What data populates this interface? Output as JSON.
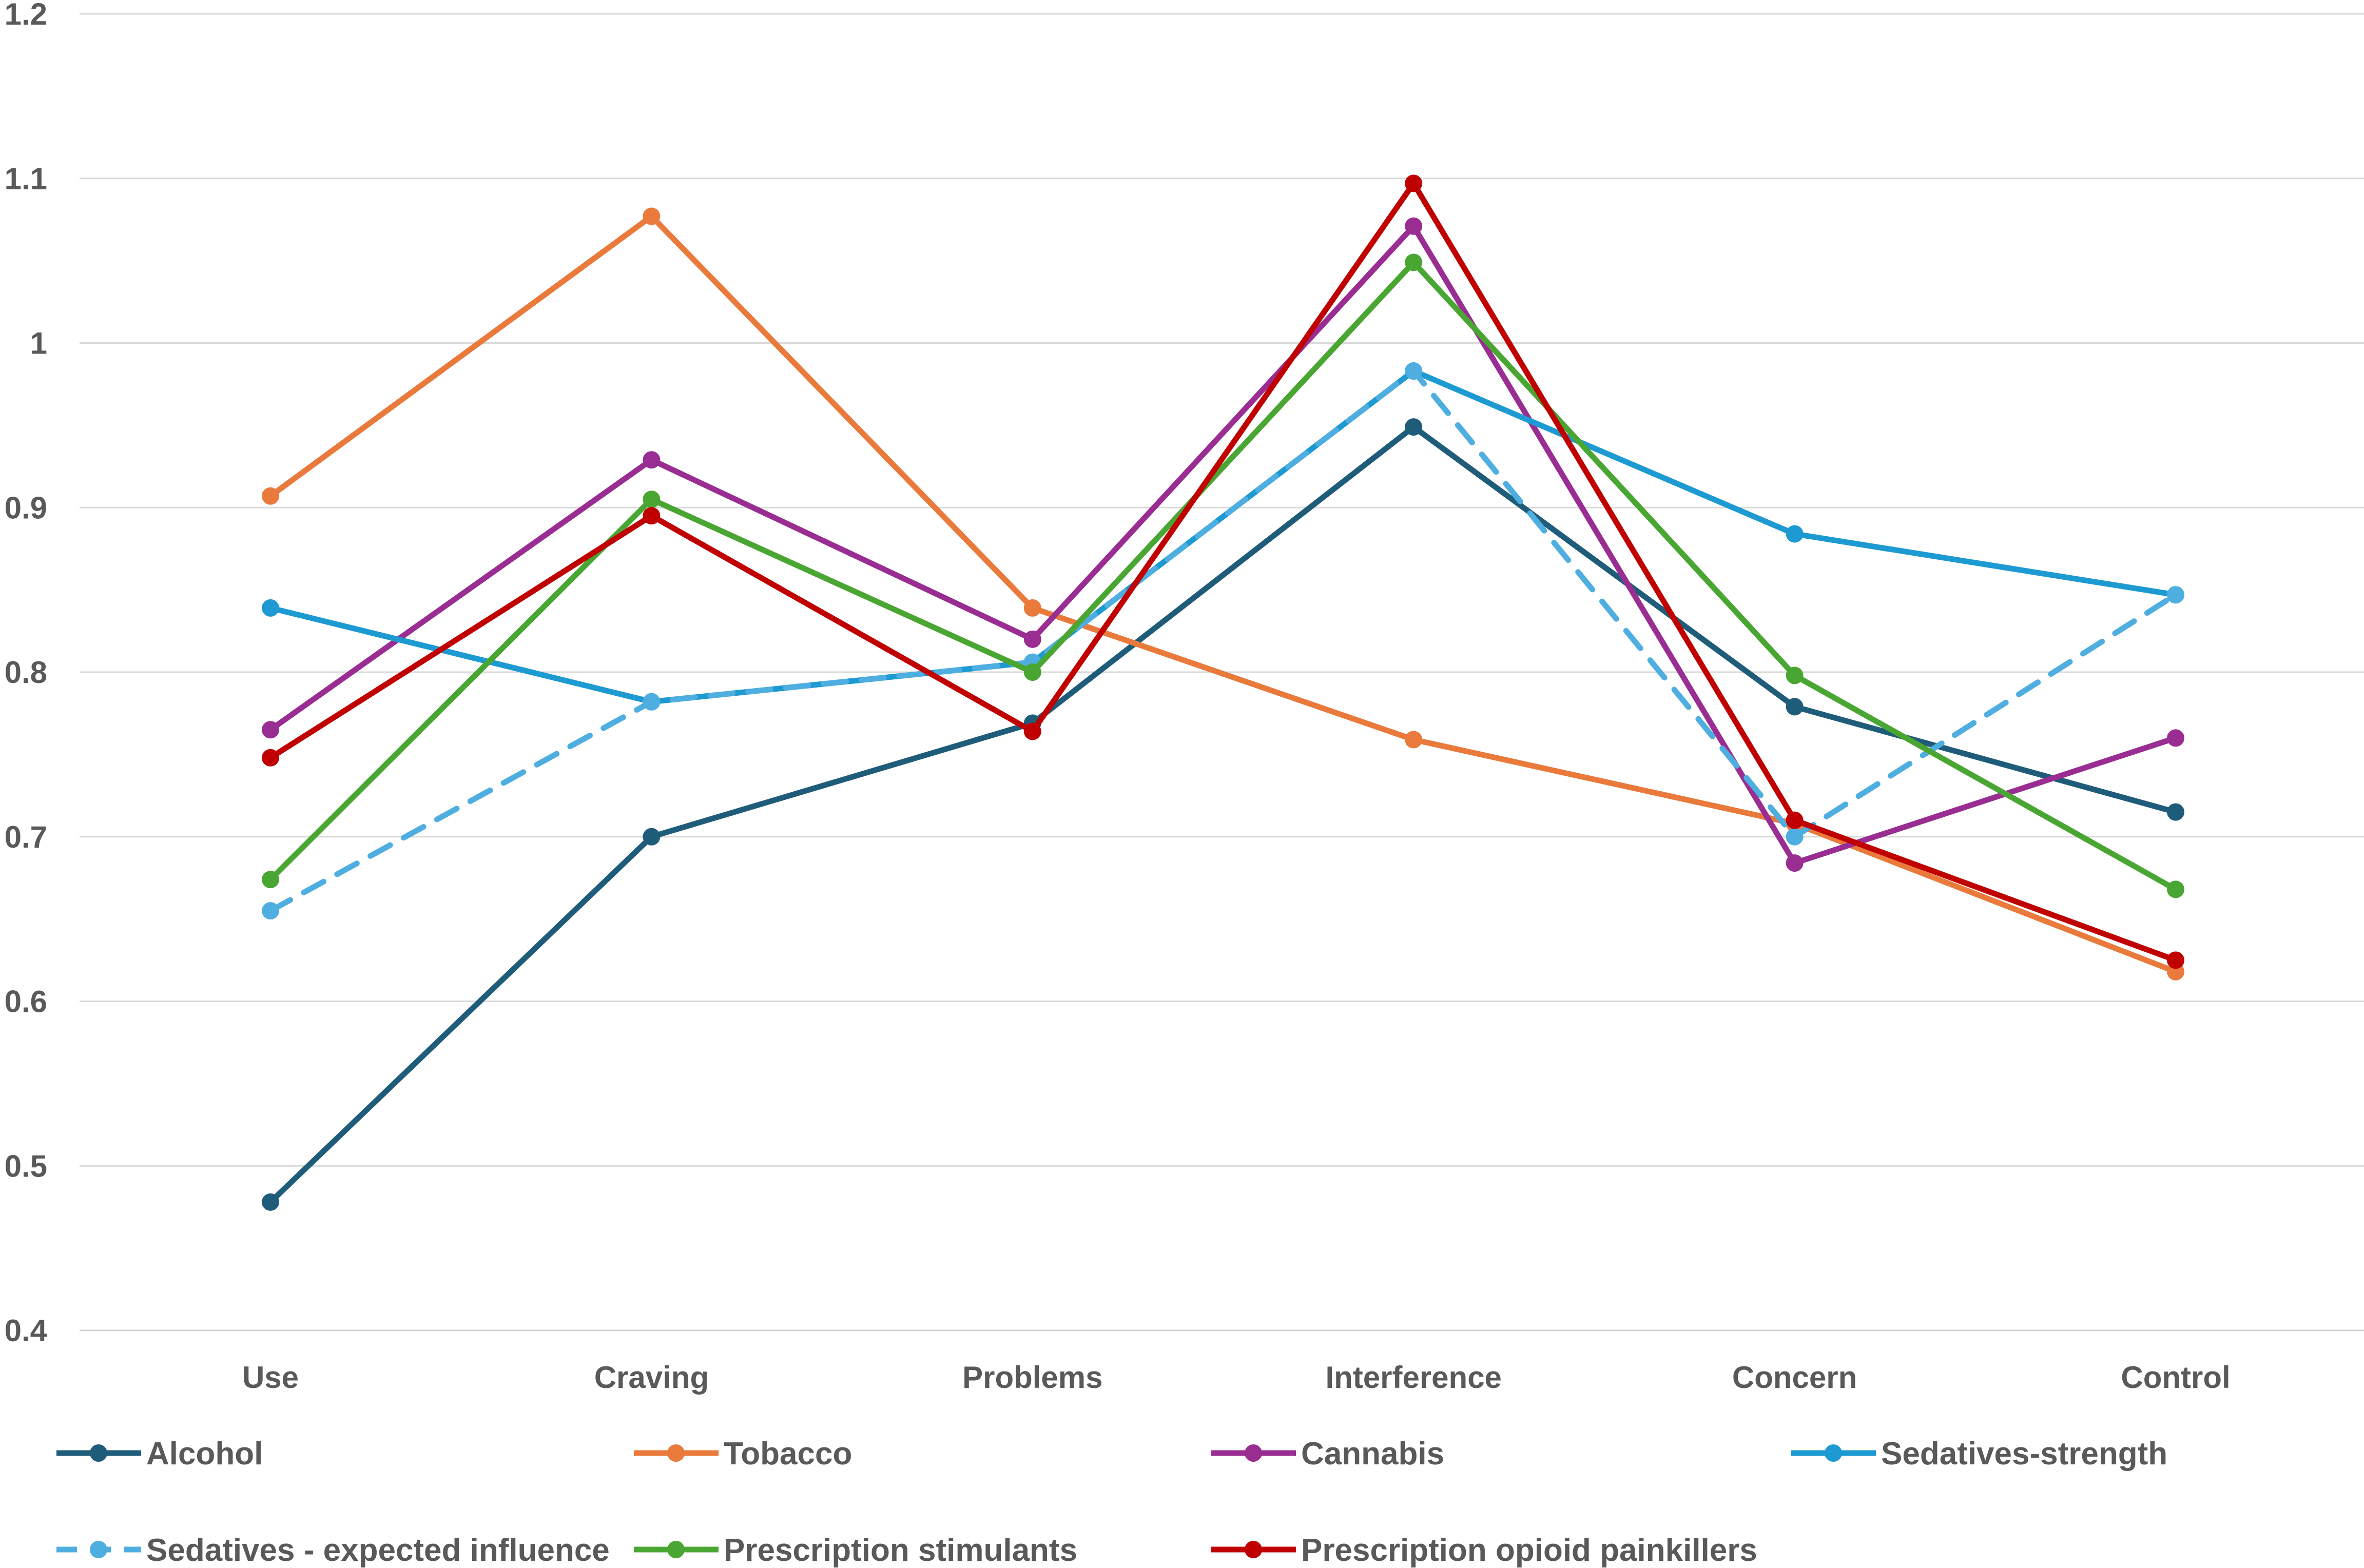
{
  "chart_data": {
    "type": "line",
    "title": "",
    "xlabel": "",
    "ylabel": "",
    "ylim": [
      0.4,
      1.2
    ],
    "ytick_step": 0.1,
    "ytick_labels": [
      "0.4",
      "0.5",
      "0.6",
      "0.7",
      "0.8",
      "0.9",
      "1",
      "1.1",
      "1.2"
    ],
    "grid": true,
    "legend_position": "bottom",
    "categories": [
      "Use",
      "Craving",
      "Problems",
      "Interference",
      "Concern",
      "Control"
    ],
    "series": [
      {
        "name": "Alcohol",
        "color": "#1f5c7a",
        "dashed": false,
        "values": [
          0.478,
          0.7,
          0.769,
          0.949,
          0.779,
          0.715
        ]
      },
      {
        "name": "Tobacco",
        "color": "#e97a3b",
        "dashed": false,
        "values": [
          0.907,
          1.077,
          0.839,
          0.759,
          0.708,
          0.618
        ]
      },
      {
        "name": "Cannabis",
        "color": "#992d92",
        "dashed": false,
        "values": [
          0.765,
          0.929,
          0.82,
          1.071,
          0.684,
          0.76
        ]
      },
      {
        "name": "Sedatives-strength",
        "color": "#1d9ad2",
        "dashed": false,
        "values": [
          0.839,
          0.782,
          0.806,
          0.983,
          0.884,
          0.847
        ]
      },
      {
        "name": "Sedatives - expected influence",
        "color": "#4faee0",
        "dashed": true,
        "values": [
          0.655,
          0.782,
          0.806,
          0.983,
          0.7,
          0.847
        ]
      },
      {
        "name": "Prescription stimulants",
        "color": "#4aa632",
        "dashed": false,
        "values": [
          0.674,
          0.905,
          0.8,
          1.049,
          0.798,
          0.668
        ]
      },
      {
        "name": "Prescription opioid painkillers",
        "color": "#c00000",
        "dashed": false,
        "values": [
          0.748,
          0.895,
          0.764,
          1.097,
          0.71,
          0.625
        ]
      }
    ]
  }
}
